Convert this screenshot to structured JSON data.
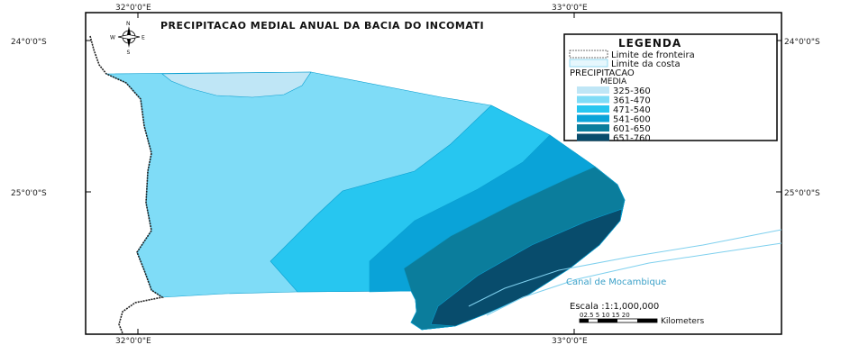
{
  "map": {
    "title": "PRECIPITACAO MEDIAL ANUAL DA BACIA DO INCOMATI",
    "graticule": {
      "top_left": "32°0'0\"E",
      "top_right": "33°0'0\"E",
      "bottom_left": "32°0'0\"E",
      "bottom_right": "33°0'0\"E",
      "left_top": "24°0'0\"S",
      "left_mid": "25°0'0\"S",
      "right_top": "24°0'0\"S",
      "right_mid": "25°0'0\"S"
    },
    "compass": {
      "n": "N",
      "s": "S",
      "e": "E",
      "w": "W"
    },
    "sea_label": "Canal de Mocambique",
    "scale": {
      "title": "Escala :1:1,000,000",
      "ticks": "02.5 5 10 15 20",
      "unit": "Kilometers"
    }
  },
  "legend": {
    "title": "LEGENDA",
    "boundary_items": [
      {
        "label": "Limite de fronteira"
      },
      {
        "label": "Limite da costa"
      }
    ],
    "class_heading_1": "PRECIPITACAO",
    "class_heading_2": "MEDIA",
    "classes": [
      {
        "label": "325-360",
        "color": "#bfe6f6"
      },
      {
        "label": "361-470",
        "color": "#7fdcf7"
      },
      {
        "label": "471-540",
        "color": "#27c6f0"
      },
      {
        "label": "541-600",
        "color": "#0aa3d8"
      },
      {
        "label": "601-650",
        "color": "#0b7d9c"
      },
      {
        "label": "651-760",
        "color": "#084c6c"
      }
    ]
  }
}
